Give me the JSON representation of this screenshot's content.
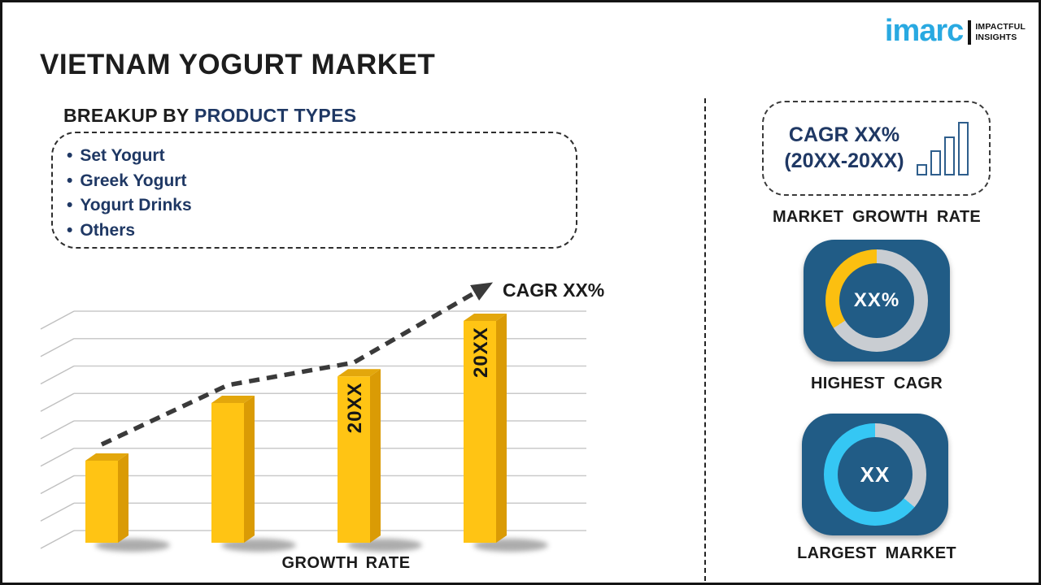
{
  "header": {
    "title": "VIETNAM YOGURT MARKET"
  },
  "brand": {
    "name": "imarc",
    "tagline_line1": "IMPACTFUL",
    "tagline_line2": "INSIGHTS",
    "brand_color": "#29A9E1"
  },
  "breakup": {
    "heading_prefix": "BREAKUP BY ",
    "heading_highlight": "PRODUCT TYPES",
    "items": [
      "Set Yogurt",
      "Greek Yogurt",
      "Yogurt Drinks",
      "Others"
    ],
    "text_color": "#1F3864"
  },
  "chart_data": [
    {
      "type": "bar",
      "title": "",
      "xlabel": "GROWTH RATE",
      "categories": [
        "",
        "",
        "20XX",
        "20XX"
      ],
      "values": [
        37,
        63,
        75,
        100
      ],
      "values_note": "placeholder infographic chart; values are bar heights as % of tallest bar",
      "ylim": [
        0,
        100
      ],
      "grid": true,
      "trend_label": "CAGR XX%",
      "trend_style": "dashed-arrow",
      "bar_color": "#FFC414",
      "bar_side_color": "#DA9B05",
      "bar_top_color": "#E3A70C",
      "trend_color": "#3A3A3A"
    },
    {
      "type": "donut",
      "title": "HIGHEST CAGR",
      "center_label": "XX%",
      "segments": [
        {
          "name": "highlighted",
          "value": 34,
          "color": "#FCBF10"
        },
        {
          "name": "remainder",
          "value": 66,
          "color": "#C9CDD2"
        }
      ]
    },
    {
      "type": "donut",
      "title": "LARGEST MARKET",
      "center_label": "XX",
      "segments": [
        {
          "name": "highlighted",
          "value": 64,
          "color": "#35C7F4"
        },
        {
          "name": "remainder",
          "value": 36,
          "color": "#C9CDD2"
        }
      ]
    }
  ],
  "right_panel": {
    "growth_box": {
      "line1": "CAGR XX%",
      "line2": "(20XX-20XX)",
      "icon": "ascending-bars-icon"
    },
    "market_growth_rate_label": "MARKET GROWTH RATE",
    "card_color": "#215C86"
  }
}
